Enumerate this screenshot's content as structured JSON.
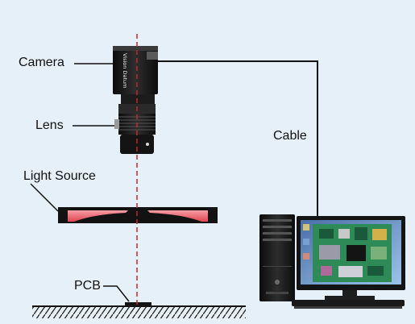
{
  "labels": {
    "camera": "Camera",
    "lens": "Lens",
    "light_source": "Light Source",
    "pcb": "PCB",
    "cable": "Cable"
  },
  "camera_brand": "Vision Datum",
  "colors": {
    "background": "#e5f0f8",
    "optical_axis": "#c0282d",
    "light_glow": "#e8606a",
    "pcb_green": "#2e8b57",
    "device_black": "#141414"
  }
}
